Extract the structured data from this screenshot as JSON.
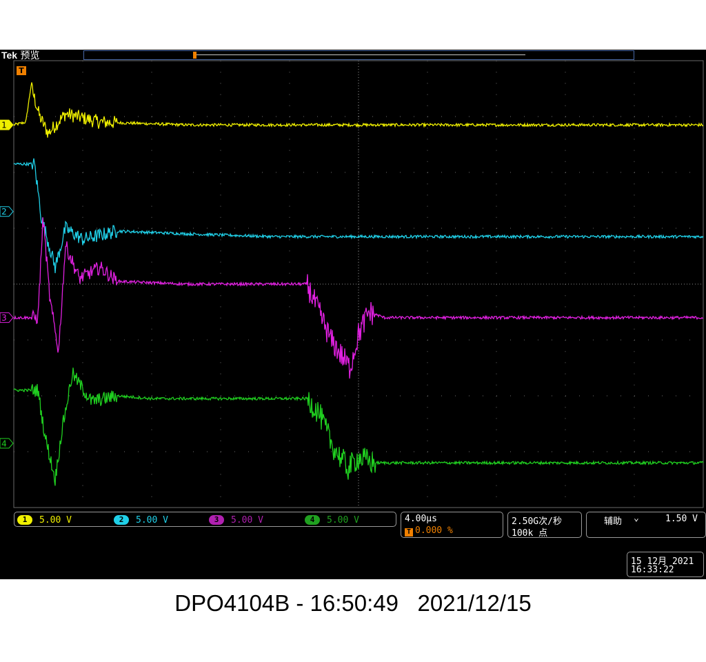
{
  "header": {
    "brand": "Tek",
    "mode": "预览"
  },
  "trigger_marker_label": "T",
  "channels": [
    {
      "id": "1",
      "color": "#f0f000",
      "scale": "5.00 V"
    },
    {
      "id": "2",
      "color": "#20d0e8",
      "scale": "5.00 V"
    },
    {
      "id": "3",
      "color": "#e020e0",
      "scale": "5.00 V"
    },
    {
      "id": "4",
      "color": "#20d020",
      "scale": "5.00 V"
    }
  ],
  "timebase": {
    "scale": "4.00µs",
    "trigger_position": "0.000 %"
  },
  "acquisition": {
    "sample_rate": "2.50G次/秒",
    "record_length": "100k 点"
  },
  "trigger": {
    "source": "辅助",
    "slope_symbol": "⌄",
    "level": "1.50 V"
  },
  "datetime": {
    "date": "15 12月 2021",
    "time": "16:33:22"
  },
  "caption": "DPO4104B - 16:50:49   2021/12/15",
  "chart_data": {
    "type": "line",
    "xlim": [
      -20,
      20
    ],
    "ylim": [
      -4,
      4
    ],
    "grid": true,
    "x_unit": "µs",
    "y_unit": "div",
    "series": [
      {
        "name": "1",
        "x": [
          -20,
          -19.3,
          -19,
          -18.5,
          -18,
          -17,
          -15,
          -10,
          -5,
          0,
          5,
          10,
          15,
          20
        ],
        "y": [
          2.85,
          2.9,
          3.55,
          3.0,
          2.7,
          3.05,
          2.9,
          2.85,
          2.85,
          2.85,
          2.85,
          2.85,
          2.85,
          2.85
        ]
      },
      {
        "name": "2",
        "x": [
          -20,
          -18.8,
          -18.4,
          -17.6,
          -17,
          -16,
          -14,
          -10,
          -5,
          0,
          5,
          10,
          15,
          20
        ],
        "y": [
          2.15,
          2.15,
          1.2,
          0.3,
          1.0,
          0.8,
          0.95,
          0.9,
          0.85,
          0.85,
          0.85,
          0.85,
          0.85,
          0.85
        ]
      },
      {
        "name": "3",
        "x": [
          -20,
          -18.6,
          -18.3,
          -17.9,
          -17.4,
          -17,
          -16.2,
          -15,
          -14,
          -10,
          -3,
          -2.3,
          -1.6,
          -0.5,
          0,
          0.6,
          1.5,
          3,
          10,
          20
        ],
        "y": [
          -0.6,
          -0.6,
          1.2,
          -0.3,
          -1.2,
          0.7,
          0.1,
          0.3,
          0.05,
          0.0,
          0.0,
          -0.5,
          -1.0,
          -1.5,
          -0.9,
          -0.5,
          -0.6,
          -0.6,
          -0.6,
          -0.6
        ]
      },
      {
        "name": "4",
        "x": [
          -20,
          -18.6,
          -18.2,
          -17.6,
          -17.2,
          -16.6,
          -15.5,
          -14,
          -12,
          -10,
          -3,
          -2.3,
          -1.5,
          -0.6,
          0,
          0.8,
          2,
          10,
          20
        ],
        "y": [
          -1.9,
          -1.9,
          -2.7,
          -3.5,
          -2.6,
          -1.6,
          -2.1,
          -2.0,
          -2.05,
          -2.05,
          -2.05,
          -2.3,
          -2.9,
          -3.3,
          -3.1,
          -3.2,
          -3.2,
          -3.2,
          -3.2
        ]
      }
    ]
  }
}
